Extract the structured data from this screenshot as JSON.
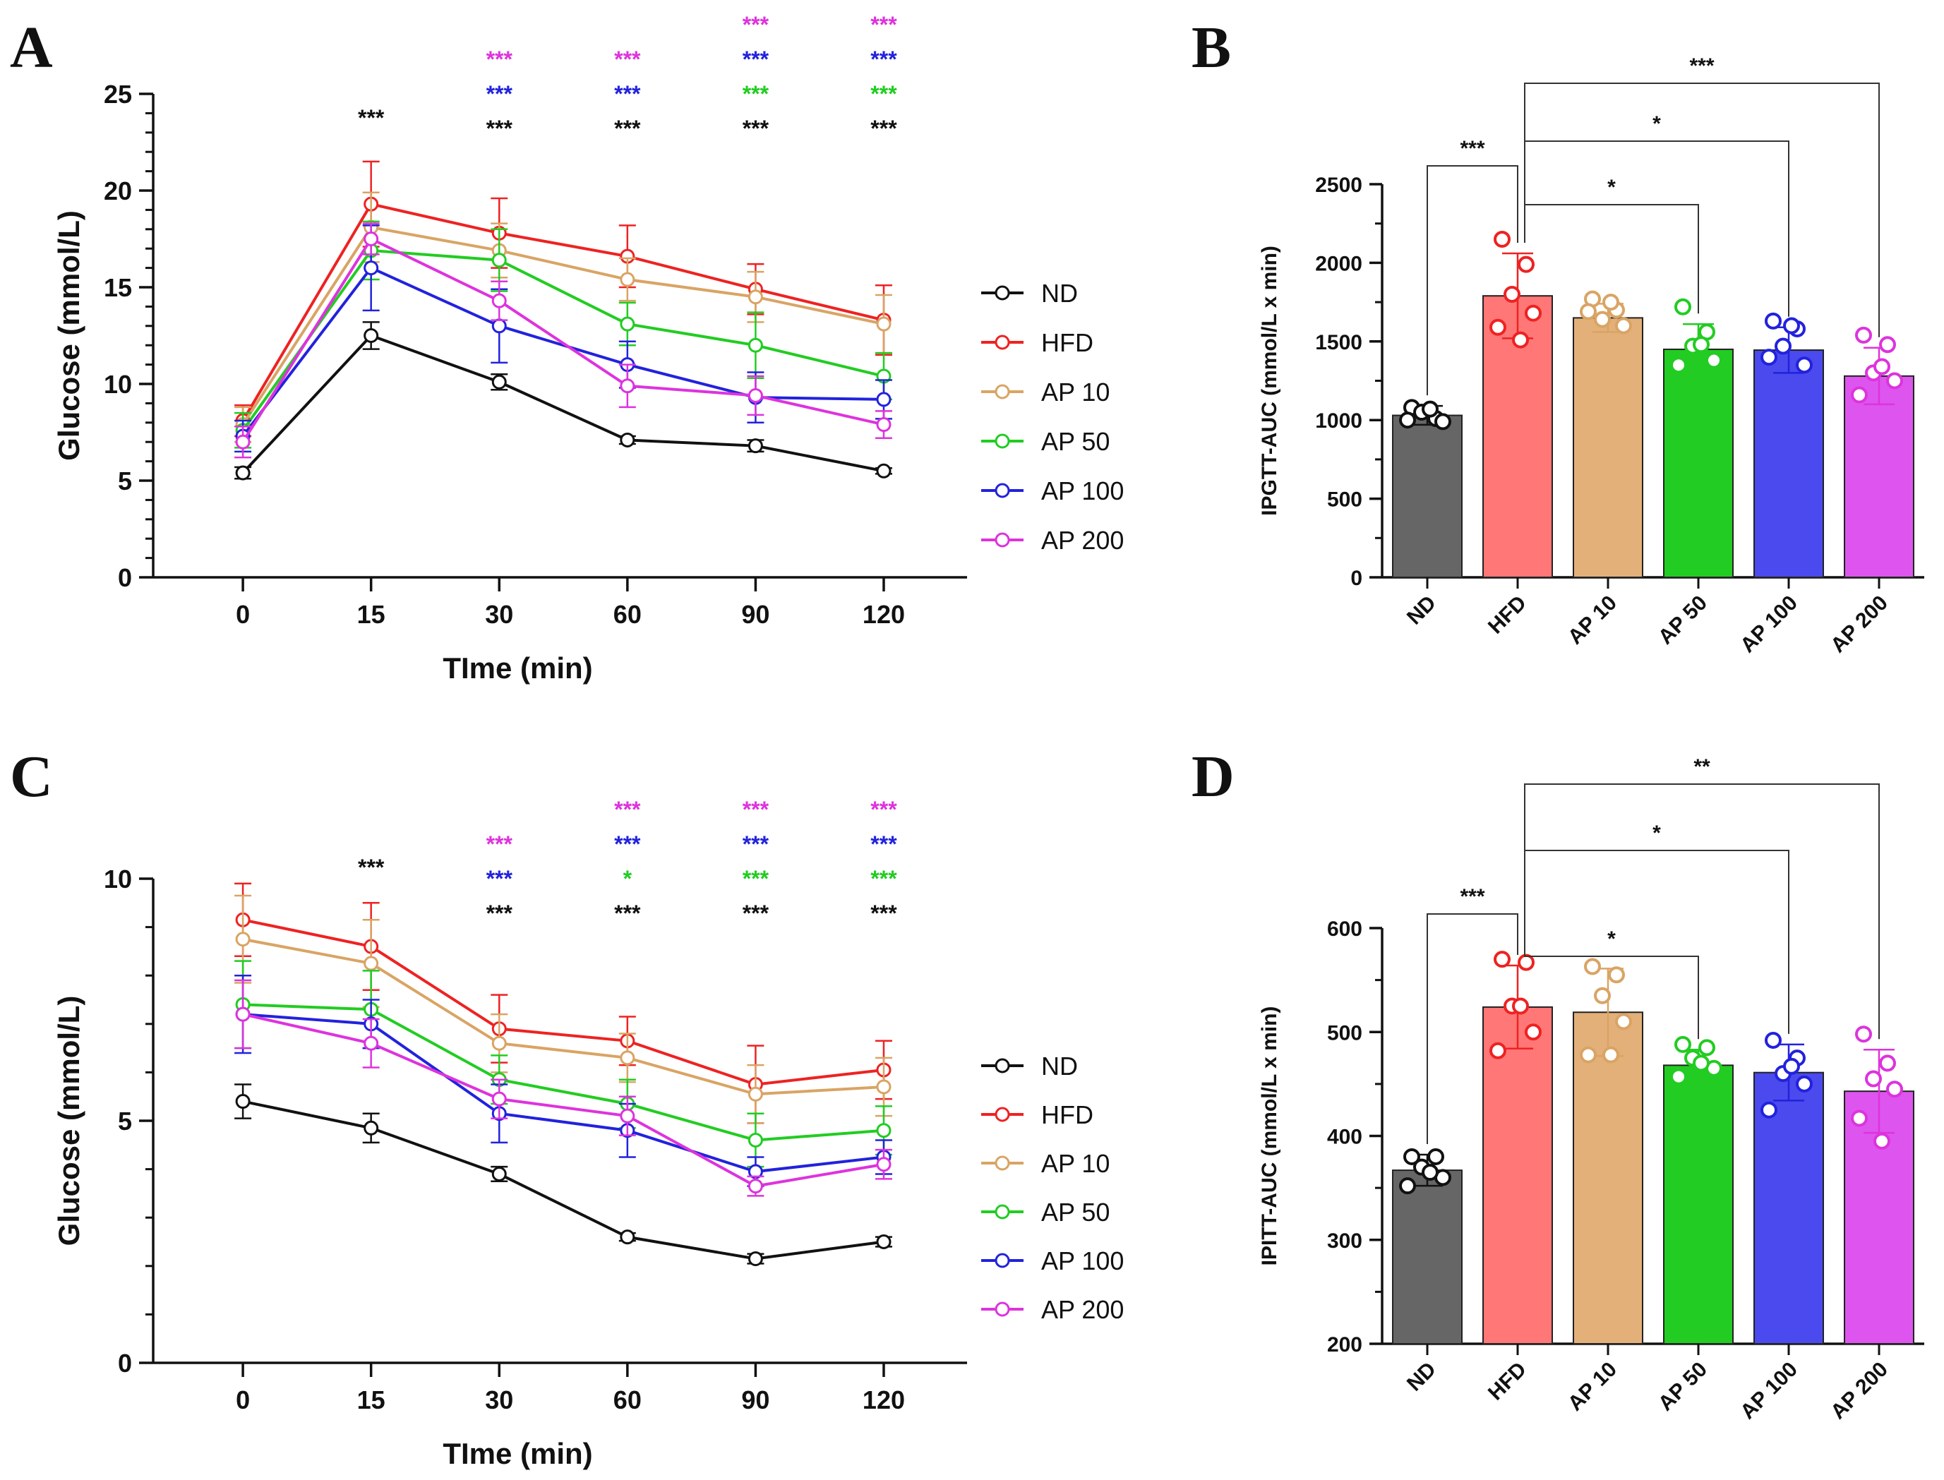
{
  "colors": {
    "ND": "#111111",
    "HFD": "#ee2222",
    "AP 10": "#d9a464",
    "AP 50": "#22cc22",
    "AP 100": "#2222dd",
    "AP 200": "#dd33dd",
    "ND_bar": "#666666",
    "HFD_bar": "#ff7777",
    "AP 10_bar": "#e3b079",
    "AP 50_bar": "#22cc22",
    "AP 100_bar": "#4a4aee",
    "AP 200_bar": "#dd55ee"
  },
  "chart_data": [
    {
      "panel": "A",
      "type": "line",
      "xlabel": "TIme  (min)",
      "ylabel": "Glucose (mmol/L)",
      "x": [
        0,
        15,
        30,
        60,
        90,
        120
      ],
      "x_ticks": [
        "0",
        "15",
        "30",
        "60",
        "90",
        "120"
      ],
      "ylim": [
        0,
        25
      ],
      "y_ticks": [
        "0",
        "5",
        "10",
        "15",
        "20",
        "25"
      ],
      "legend": [
        "ND",
        "HFD",
        "AP 10",
        "AP 50",
        "AP 100",
        "AP 200"
      ],
      "series": [
        {
          "name": "ND",
          "values": [
            5.4,
            12.5,
            10.1,
            7.1,
            6.8,
            5.5
          ],
          "errors": [
            0.3,
            0.7,
            0.4,
            0.2,
            0.3,
            0.15
          ]
        },
        {
          "name": "HFD",
          "values": [
            8.1,
            19.3,
            17.8,
            16.6,
            14.9,
            13.3
          ],
          "errors": [
            0.8,
            2.2,
            1.8,
            1.6,
            1.3,
            1.8
          ]
        },
        {
          "name": "AP 10",
          "values": [
            7.9,
            18.1,
            16.9,
            15.4,
            14.5,
            13.1
          ],
          "errors": [
            0.9,
            1.8,
            1.4,
            1.1,
            1.3,
            1.5
          ]
        },
        {
          "name": "AP 50",
          "values": [
            7.6,
            16.9,
            16.4,
            13.1,
            12.0,
            10.4
          ],
          "errors": [
            0.9,
            1.5,
            1.6,
            1.1,
            1.7,
            1.2
          ]
        },
        {
          "name": "AP 100",
          "values": [
            7.3,
            16.0,
            13.0,
            11.0,
            9.3,
            9.2
          ],
          "errors": [
            0.8,
            2.2,
            1.9,
            1.2,
            1.3,
            1.0
          ]
        },
        {
          "name": "AP 200",
          "values": [
            7.0,
            17.5,
            14.3,
            9.9,
            9.4,
            7.9
          ],
          "errors": [
            0.8,
            0.8,
            1.0,
            1.1,
            1.0,
            0.7
          ]
        }
      ],
      "annotations": [
        {
          "x": 15,
          "stars": [
            {
              "text": "***",
              "series": "ND"
            }
          ]
        },
        {
          "x": 30,
          "stars": [
            {
              "text": "***",
              "series": "AP 200"
            },
            {
              "text": "***",
              "series": "AP 100"
            },
            {
              "text": "***",
              "series": "ND"
            }
          ]
        },
        {
          "x": 60,
          "stars": [
            {
              "text": "***",
              "series": "AP 200"
            },
            {
              "text": "***",
              "series": "AP 100"
            },
            {
              "text": "***",
              "series": "ND"
            }
          ]
        },
        {
          "x": 90,
          "stars": [
            {
              "text": "***",
              "series": "AP 200"
            },
            {
              "text": "***",
              "series": "AP 100"
            },
            {
              "text": "***",
              "series": "AP 50"
            },
            {
              "text": "***",
              "series": "ND"
            }
          ]
        },
        {
          "x": 120,
          "stars": [
            {
              "text": "***",
              "series": "AP 200"
            },
            {
              "text": "***",
              "series": "AP 100"
            },
            {
              "text": "***",
              "series": "AP 50"
            },
            {
              "text": "***",
              "series": "ND"
            }
          ]
        }
      ]
    },
    {
      "panel": "B",
      "type": "bar",
      "ylabel": "IPGTT-AUC  (mmol/L x min)",
      "categories": [
        "ND",
        "HFD",
        "AP 10",
        "AP 50",
        "AP 100",
        "AP 200"
      ],
      "values": [
        1030,
        1790,
        1650,
        1450,
        1445,
        1280
      ],
      "errors": [
        60,
        270,
        90,
        160,
        145,
        180
      ],
      "points": [
        [
          1080,
          1010,
          1050,
          990,
          1000,
          1070
        ],
        [
          2150,
          1990,
          1800,
          1680,
          1590,
          1510
        ],
        [
          1770,
          1700,
          1640,
          1600,
          1690,
          1750
        ],
        [
          1720,
          1560,
          1470,
          1380,
          1350,
          1480
        ],
        [
          1630,
          1580,
          1470,
          1350,
          1400,
          1600
        ],
        [
          1540,
          1480,
          1300,
          1250,
          1160,
          1340
        ]
      ],
      "ylim": [
        0,
        2500
      ],
      "y_ticks": [
        "0",
        "500",
        "1000",
        "1500",
        "2000",
        "2500"
      ],
      "comparisons": [
        {
          "from": "ND",
          "to": "HFD",
          "label": "***"
        },
        {
          "from": "HFD",
          "to": "AP 50",
          "label": "*"
        },
        {
          "from": "HFD",
          "to": "AP 100",
          "label": "*"
        },
        {
          "from": "HFD",
          "to": "AP 200",
          "label": "***"
        }
      ]
    },
    {
      "panel": "C",
      "type": "line",
      "xlabel": "TIme  (min)",
      "ylabel": "Glucose (mmol/L)",
      "x": [
        0,
        15,
        30,
        60,
        90,
        120
      ],
      "x_ticks": [
        "0",
        "15",
        "30",
        "60",
        "90",
        "120"
      ],
      "ylim": [
        0,
        10
      ],
      "y_ticks": [
        "0",
        "5",
        "10"
      ],
      "legend": [
        "ND",
        "HFD",
        "AP 10",
        "AP 50",
        "AP 100",
        "AP 200"
      ],
      "series": [
        {
          "name": "ND",
          "values": [
            5.4,
            4.85,
            3.9,
            2.6,
            2.15,
            2.5
          ],
          "errors": [
            0.35,
            0.3,
            0.15,
            0.08,
            0.1,
            0.1
          ]
        },
        {
          "name": "HFD",
          "values": [
            9.15,
            8.6,
            6.9,
            6.65,
            5.75,
            6.05
          ],
          "errors": [
            0.75,
            0.9,
            0.7,
            0.5,
            0.8,
            0.6
          ]
        },
        {
          "name": "AP 10",
          "values": [
            8.75,
            8.25,
            6.6,
            6.3,
            5.55,
            5.7
          ],
          "errors": [
            0.9,
            0.9,
            0.6,
            0.5,
            0.6,
            0.6
          ]
        },
        {
          "name": "AP 50",
          "values": [
            7.4,
            7.3,
            5.85,
            5.35,
            4.6,
            4.8
          ],
          "errors": [
            0.9,
            0.8,
            0.5,
            0.5,
            0.55,
            0.5
          ]
        },
        {
          "name": "AP 100",
          "values": [
            7.2,
            7.0,
            5.15,
            4.8,
            3.95,
            4.25
          ],
          "errors": [
            0.8,
            0.5,
            0.6,
            0.55,
            0.3,
            0.35
          ]
        },
        {
          "name": "AP 200",
          "values": [
            7.2,
            6.6,
            5.45,
            5.1,
            3.65,
            4.1
          ],
          "errors": [
            0.7,
            0.5,
            0.4,
            0.4,
            0.2,
            0.3
          ]
        }
      ],
      "annotations": [
        {
          "x": 15,
          "stars": [
            {
              "text": "***",
              "series": "ND"
            }
          ]
        },
        {
          "x": 30,
          "stars": [
            {
              "text": "***",
              "series": "AP 200"
            },
            {
              "text": "***",
              "series": "AP 100"
            },
            {
              "text": "***",
              "series": "ND"
            }
          ]
        },
        {
          "x": 60,
          "stars": [
            {
              "text": "***",
              "series": "AP 200"
            },
            {
              "text": "***",
              "series": "AP 100"
            },
            {
              "text": "*",
              "series": "AP 50"
            },
            {
              "text": "***",
              "series": "ND"
            }
          ]
        },
        {
          "x": 90,
          "stars": [
            {
              "text": "***",
              "series": "AP 200"
            },
            {
              "text": "***",
              "series": "AP 100"
            },
            {
              "text": "***",
              "series": "AP 50"
            },
            {
              "text": "***",
              "series": "ND"
            }
          ]
        },
        {
          "x": 120,
          "stars": [
            {
              "text": "***",
              "series": "AP 200"
            },
            {
              "text": "***",
              "series": "AP 100"
            },
            {
              "text": "***",
              "series": "AP 50"
            },
            {
              "text": "***",
              "series": "ND"
            }
          ]
        }
      ]
    },
    {
      "panel": "D",
      "type": "bar",
      "ylabel": "IPITT-AUC  (mmol/L x min)",
      "categories": [
        "ND",
        "HFD",
        "AP 10",
        "AP 50",
        "AP 100",
        "AP 200"
      ],
      "values": [
        367,
        524,
        519,
        468,
        461,
        443
      ],
      "errors": [
        15,
        40,
        42,
        15,
        27,
        40
      ],
      "points": [
        [
          380,
          380,
          370,
          360,
          352,
          365
        ],
        [
          570,
          567,
          525,
          500,
          482,
          525
        ],
        [
          563,
          555,
          535,
          510,
          478,
          478
        ],
        [
          488,
          485,
          475,
          465,
          457,
          470
        ],
        [
          492,
          475,
          460,
          450,
          425,
          467
        ],
        [
          498,
          470,
          455,
          445,
          417,
          395
        ]
      ],
      "ylim": [
        200,
        600
      ],
      "y_ticks": [
        "200",
        "300",
        "400",
        "500",
        "600"
      ],
      "comparisons": [
        {
          "from": "ND",
          "to": "HFD",
          "label": "***"
        },
        {
          "from": "HFD",
          "to": "AP 50",
          "label": "*"
        },
        {
          "from": "HFD",
          "to": "AP 100",
          "label": "*"
        },
        {
          "from": "HFD",
          "to": "AP 200",
          "label": "**"
        }
      ]
    }
  ]
}
